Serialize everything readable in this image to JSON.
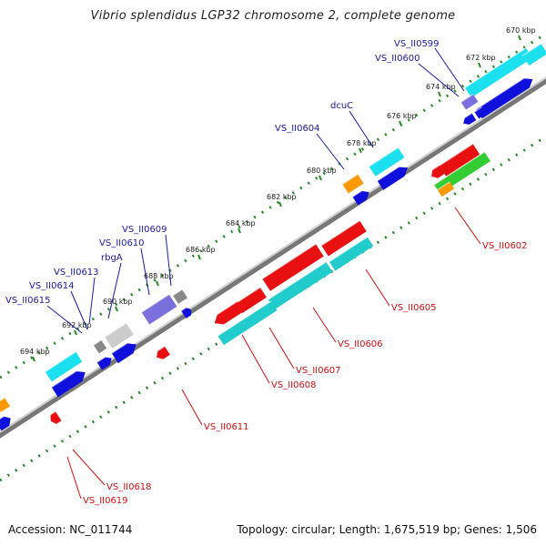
{
  "title": "Vibrio splendidus LGP32 chromosome 2, complete genome",
  "footer": {
    "accession": "Accession: NC_011744",
    "summary": "Topology: circular; Length: 1,675,519 bp; Genes: 1,506"
  },
  "colors": {
    "backbone": "#777777",
    "tick": "#2a8a2a",
    "forward_label": "#1a1aa6",
    "reverse_label": "#d01010",
    "cyan": "#1ae0f0",
    "blue": "#1010dd",
    "red": "#e81010",
    "orange": "#ff9900",
    "green": "#33cc33",
    "gray": "#888888",
    "lightgray": "#cccccc",
    "violet": "#7a70dd",
    "teal": "#22cccc"
  },
  "scale_labels": [
    "670 kbp",
    "672 kbp",
    "674 kbp",
    "676 kbp",
    "678 kbp",
    "680 kbp",
    "682 kbp",
    "684 kbp",
    "686 kbp",
    "688 kbp",
    "690 kbp",
    "692 kbp",
    "694 kbp"
  ],
  "forward_genes": [
    "VS_II0599",
    "VS_II0600",
    "dcuC",
    "VS_II0604",
    "VS_II0609",
    "VS_II0610",
    "rbgA",
    "VS_II0613",
    "VS_II0614",
    "VS_II0615"
  ],
  "reverse_genes": [
    "VS_II0602",
    "VS_II0605",
    "VS_II0606",
    "VS_II0607",
    "VS_II0608",
    "VS_II0611",
    "VS_II0618",
    "VS_II0619"
  ]
}
